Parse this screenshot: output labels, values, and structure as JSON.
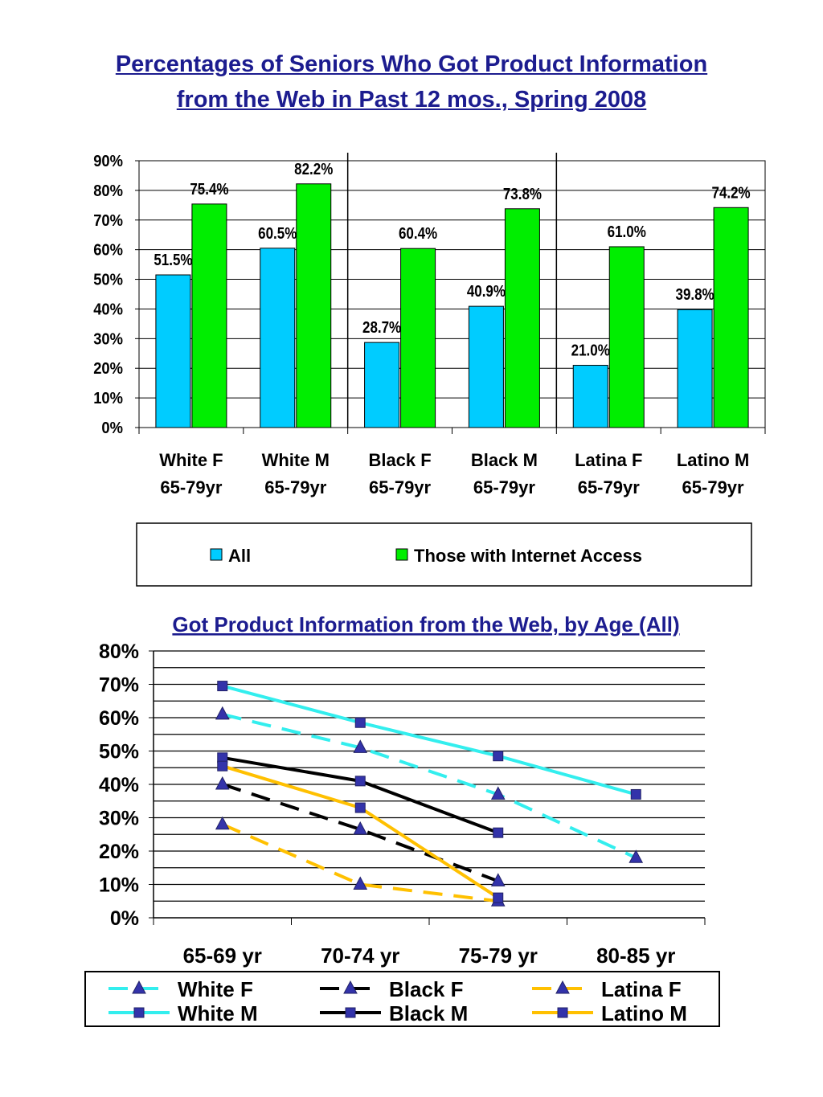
{
  "title_lines": [
    "Percentages of Seniors Who Got Product  Information",
    "from the Web in Past 12 mos., Spring 2008"
  ],
  "chart_data": [
    {
      "type": "bar",
      "categories": [
        [
          "White F",
          "65-79yr"
        ],
        [
          "White M",
          "65-79yr"
        ],
        [
          "Black F",
          "65-79yr"
        ],
        [
          "Black M",
          "65-79yr"
        ],
        [
          "Latina F",
          "65-79yr"
        ],
        [
          "Latino M",
          "65-79yr"
        ]
      ],
      "series": [
        {
          "name": "All",
          "color": "#00ccff",
          "values": [
            51.5,
            60.5,
            28.7,
            40.9,
            21.0,
            39.8
          ],
          "labels": [
            "51.5%",
            "60.5%",
            "28.7%",
            "40.9%",
            "21.0%",
            "39.8%"
          ]
        },
        {
          "name": "Those with Internet Access",
          "color": "#00ee00",
          "values": [
            75.4,
            82.2,
            60.4,
            73.8,
            61.0,
            74.2
          ],
          "labels": [
            "75.4%",
            "82.2%",
            "60.4%",
            "73.8%",
            "61.0%",
            "74.2%"
          ]
        }
      ],
      "ylim": [
        0,
        90
      ],
      "yticks": [
        "0%",
        "10%",
        "20%",
        "30%",
        "40%",
        "50%",
        "60%",
        "70%",
        "80%",
        "90%"
      ],
      "grid": true,
      "legend": "bottom"
    },
    {
      "type": "line",
      "title": "Got Product Information from the Web, by Age (All)",
      "categories": [
        "65-69 yr",
        "70-74 yr",
        "75-79 yr",
        "80-85 yr"
      ],
      "ylim": [
        0,
        80
      ],
      "yticks": [
        "0%",
        "10%",
        "20%",
        "30%",
        "40%",
        "50%",
        "60%",
        "70%",
        "80%"
      ],
      "grid": true,
      "legend": "bottom",
      "series": [
        {
          "name": "White F",
          "color": "#33eeee",
          "marker": "triangle",
          "dashed": true,
          "values": [
            61,
            51,
            37,
            18
          ]
        },
        {
          "name": "White M",
          "color": "#33eeee",
          "marker": "square",
          "dashed": false,
          "values": [
            69.5,
            58.5,
            48.5,
            37
          ]
        },
        {
          "name": "Black F",
          "color": "#000000",
          "marker": "triangle",
          "dashed": true,
          "values": [
            40,
            26.5,
            11,
            null
          ]
        },
        {
          "name": "Black M",
          "color": "#000000",
          "marker": "square",
          "dashed": false,
          "values": [
            48,
            41,
            25.5,
            null
          ]
        },
        {
          "name": "Latina F",
          "color": "#ffc000",
          "marker": "triangle",
          "dashed": true,
          "values": [
            28,
            10,
            5,
            null
          ]
        },
        {
          "name": "Latino M",
          "color": "#ffc000",
          "marker": "square",
          "dashed": false,
          "values": [
            45.5,
            33,
            6,
            null
          ]
        }
      ]
    }
  ]
}
